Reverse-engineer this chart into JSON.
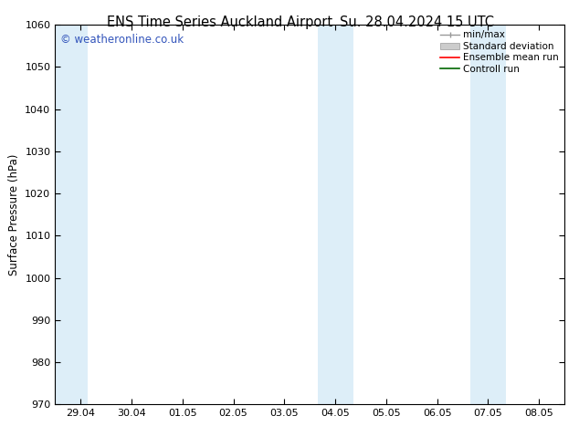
{
  "title_left": "ENS Time Series Auckland Airport",
  "title_right": "Su. 28.04.2024 15 UTC",
  "ylabel": "Surface Pressure (hPa)",
  "ylim": [
    970,
    1060
  ],
  "yticks": [
    970,
    980,
    990,
    1000,
    1010,
    1020,
    1030,
    1040,
    1050,
    1060
  ],
  "x_tick_labels": [
    "29.04",
    "30.04",
    "01.05",
    "02.05",
    "03.05",
    "04.05",
    "05.05",
    "06.05",
    "07.05",
    "08.05"
  ],
  "x_tick_positions": [
    0,
    1,
    2,
    3,
    4,
    5,
    6,
    7,
    8,
    9
  ],
  "xlim": [
    -0.5,
    9.5
  ],
  "shaded_bands": [
    {
      "x_start": -0.5,
      "x_end": 0.15,
      "color": "#ddeef8"
    },
    {
      "x_start": 4.65,
      "x_end": 5.35,
      "color": "#ddeef8"
    },
    {
      "x_start": 7.65,
      "x_end": 8.35,
      "color": "#ddeef8"
    }
  ],
  "watermark": "© weatheronline.co.uk",
  "watermark_color": "#3355bb",
  "legend_labels": [
    "min/max",
    "Standard deviation",
    "Ensemble mean run",
    "Controll run"
  ],
  "legend_colors": [
    "#999999",
    "#cccccc",
    "#ff0000",
    "#006600"
  ],
  "background_color": "#ffffff",
  "plot_bg_color": "#ffffff",
  "border_color": "#000000",
  "tick_color": "#000000",
  "title_fontsize": 10.5,
  "label_fontsize": 8.5,
  "tick_fontsize": 8,
  "watermark_fontsize": 8.5,
  "legend_fontsize": 7.5
}
